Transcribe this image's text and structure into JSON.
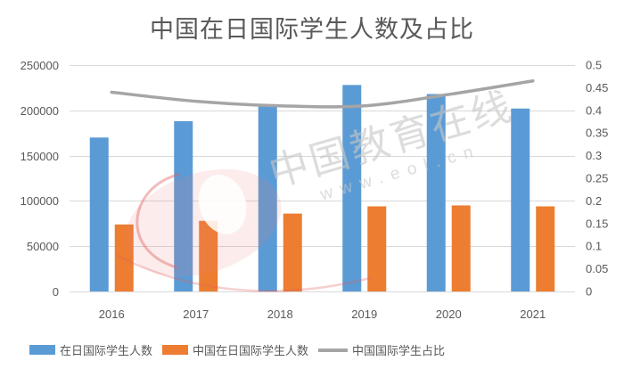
{
  "title": "中国在日国际学生人数及占比",
  "watermark": {
    "brand_text": "中国教育在线",
    "url_text": "www.eol.cn"
  },
  "colors": {
    "bar_total": "#5B9BD5",
    "bar_china": "#ED7D31",
    "line_ratio": "#A5A5A5",
    "grid": "#D9D9D9",
    "text": "#595959"
  },
  "chart_data": {
    "type": "bar",
    "title": "中国在日国际学生人数及占比",
    "categories": [
      "2016",
      "2017",
      "2018",
      "2019",
      "2020",
      "2021"
    ],
    "series": [
      {
        "name": "在日国际学生人数",
        "type": "bar",
        "axis": "left",
        "color": "#5B9BD5",
        "values": [
          170000,
          188000,
          205000,
          228000,
          218000,
          202000
        ]
      },
      {
        "name": "中国在日国际学生人数",
        "type": "bar",
        "axis": "left",
        "color": "#ED7D31",
        "values": [
          74000,
          78000,
          86000,
          94000,
          95000,
          94000
        ]
      },
      {
        "name": "中国国际学生占比",
        "type": "line",
        "axis": "right",
        "color": "#A5A5A5",
        "values": [
          0.44,
          0.42,
          0.41,
          0.41,
          0.435,
          0.465
        ]
      }
    ],
    "left_axis": {
      "min": 0,
      "max": 250000,
      "step": 50000,
      "tick_labels": [
        "0",
        "50000",
        "100000",
        "150000",
        "200000",
        "250000"
      ]
    },
    "right_axis": {
      "min": 0,
      "max": 0.5,
      "step": 0.05,
      "tick_labels": [
        "0",
        "0.05",
        "0.1",
        "0.15",
        "0.2",
        "0.25",
        "0.3",
        "0.35",
        "0.4",
        "0.45",
        "0.5"
      ]
    },
    "grid": true,
    "legend_position": "bottom",
    "line_smooth": true
  },
  "legend": [
    {
      "label": "在日国际学生人数",
      "color": "#5B9BD5",
      "marker": "rect"
    },
    {
      "label": "中国在日国际学生人数",
      "color": "#ED7D31",
      "marker": "rect"
    },
    {
      "label": "中国国际学生占比",
      "color": "#A5A5A5",
      "marker": "line"
    }
  ]
}
